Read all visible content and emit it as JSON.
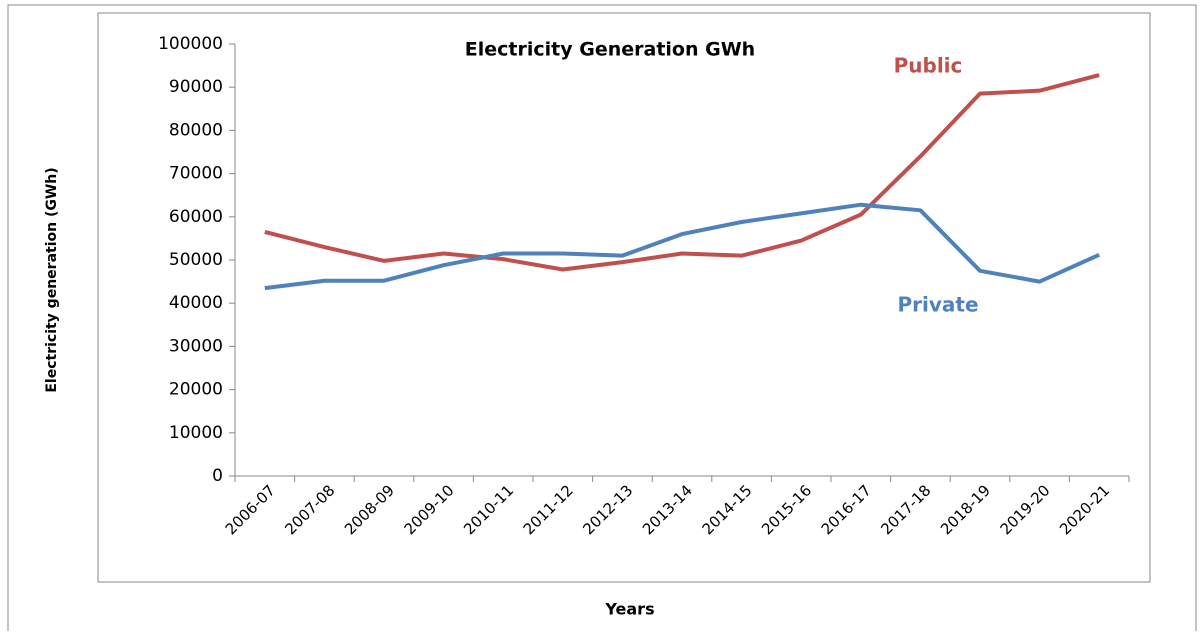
{
  "chart_data": {
    "type": "line",
    "title": "Electricity Generation GWh",
    "x_label": "Years",
    "y_label": "Electricity generation (GWh)",
    "categories": [
      "2006-07",
      "2007-08",
      "2008-09",
      "2009-10",
      "2010-11",
      "2011-12",
      "2012-13",
      "2013-14",
      "2014-15",
      "2015-16",
      "2016-17",
      "2017-18",
      "2018-19",
      "2019-20",
      "2020-21"
    ],
    "series": [
      {
        "name": "Public",
        "color": "#c0504d",
        "values": [
          56500,
          53000,
          49800,
          51500,
          50200,
          47800,
          49500,
          51500,
          51000,
          54500,
          60500,
          74000,
          88500,
          89200,
          92800
        ]
      },
      {
        "name": "Private",
        "color": "#4f81bd",
        "values": [
          43500,
          45200,
          45200,
          48800,
          51500,
          51500,
          51000,
          56000,
          58800,
          60800,
          62800,
          61500,
          47500,
          45000,
          51200
        ]
      }
    ],
    "ylim": [
      0,
      100000
    ],
    "yticks": [
      0,
      10000,
      20000,
      30000,
      40000,
      50000,
      60000,
      70000,
      80000,
      90000,
      100000
    ],
    "grid": false
  }
}
